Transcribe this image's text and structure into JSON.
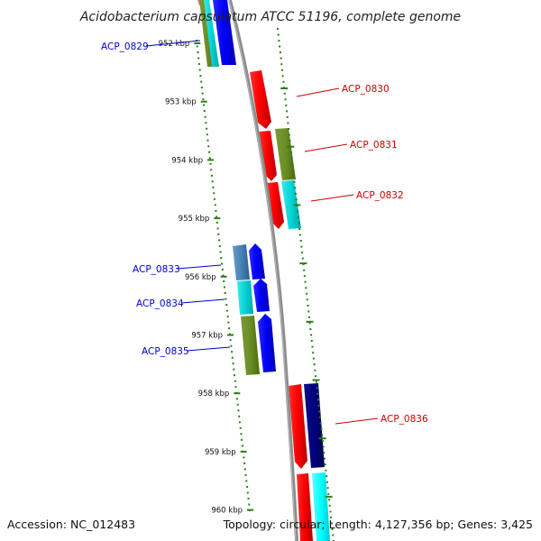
{
  "title": "Acidobacterium capsulatum ATCC 51196, complete genome",
  "footer": {
    "accession": "Accession: NC_012483",
    "topology": "Topology: circular; Length: 4,127,356 bp; Genes: 3,425"
  },
  "colors": {
    "backbone": "#8c8c8c",
    "ticks": "#2e7d1a",
    "forward_label": "#cc0000",
    "reverse_label": "#0000cc"
  },
  "ticks": [
    {
      "label": "952 kbp"
    },
    {
      "label": "953 kbp"
    },
    {
      "label": "954 kbp"
    },
    {
      "label": "955 kbp"
    },
    {
      "label": "956 kbp"
    },
    {
      "label": "957 kbp"
    },
    {
      "label": "958 kbp"
    },
    {
      "label": "959 kbp"
    },
    {
      "label": "960 kbp"
    }
  ],
  "gene_labels": [
    {
      "name": "ACP_0829",
      "strand": "-"
    },
    {
      "name": "ACP_0830",
      "strand": "+"
    },
    {
      "name": "ACP_0831",
      "strand": "+"
    },
    {
      "name": "ACP_0832",
      "strand": "+"
    },
    {
      "name": "ACP_0833",
      "strand": "-"
    },
    {
      "name": "ACP_0834",
      "strand": "-"
    },
    {
      "name": "ACP_0835",
      "strand": "-"
    },
    {
      "name": "ACP_0836",
      "strand": "+"
    }
  ]
}
